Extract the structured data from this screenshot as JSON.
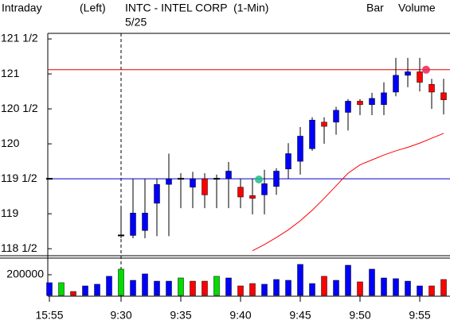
{
  "chart_data": {
    "type": "candlestick",
    "header": {
      "mode": "Intraday",
      "scale": "(Left)",
      "title": "INTC - INTEL CORP  (1-Min)",
      "date": "5/25",
      "style": "Bar",
      "study": "Volume",
      "study_color": "#00cc00"
    },
    "categories": [
      "15:55",
      null,
      null,
      null,
      null,
      null,
      "9:30",
      null,
      null,
      null,
      null,
      "9:35",
      null,
      null,
      null,
      null,
      "9:40",
      null,
      null,
      null,
      null,
      "9:45",
      null,
      null,
      null,
      null,
      "9:50",
      null,
      null,
      null,
      null,
      "9:55",
      null,
      null
    ],
    "open": [
      119.5,
      null,
      null,
      null,
      null,
      null,
      118.69,
      118.69,
      118.76,
      119.15,
      119.42,
      119.5,
      119.38,
      119.5,
      119.5,
      119.5,
      119.38,
      119.26,
      119.27,
      119.39,
      119.64,
      119.75,
      119.93,
      120.31,
      120.31,
      120.45,
      120.61,
      120.56,
      120.56,
      120.74,
      120.98,
      121.03,
      120.85,
      120.73
    ],
    "high": [
      119.5,
      null,
      null,
      null,
      null,
      null,
      119.08,
      119.5,
      119.5,
      119.5,
      119.86,
      119.58,
      119.6,
      119.58,
      119.56,
      119.74,
      119.5,
      119.5,
      119.63,
      119.65,
      120.01,
      120.24,
      120.38,
      120.38,
      120.53,
      120.64,
      120.64,
      120.73,
      120.88,
      121.23,
      121.23,
      121.23,
      120.93,
      120.93
    ],
    "low": [
      119.5,
      null,
      null,
      null,
      null,
      null,
      118.65,
      118.65,
      118.65,
      118.68,
      118.68,
      119.08,
      119.08,
      119.08,
      119.08,
      119.08,
      119.08,
      118.99,
      118.99,
      119.27,
      119.5,
      119.56,
      119.9,
      120.0,
      120.13,
      120.19,
      120.41,
      120.41,
      120.41,
      120.68,
      120.81,
      120.75,
      120.5,
      120.42
    ],
    "close": [
      119.5,
      null,
      null,
      null,
      null,
      null,
      118.69,
      119.01,
      119.01,
      119.42,
      119.5,
      119.5,
      119.5,
      119.27,
      119.5,
      119.61,
      119.24,
      119.22,
      119.43,
      119.61,
      119.86,
      120.11,
      120.34,
      120.25,
      120.48,
      120.61,
      120.56,
      120.65,
      120.73,
      120.98,
      121.03,
      120.88,
      120.74,
      120.63
    ],
    "up_color": "#0000ff",
    "down_color": "#ff0000",
    "flat_color": "#000000",
    "moving_average": {
      "color": "#ff0000",
      "values": [
        null,
        null,
        null,
        null,
        null,
        null,
        null,
        null,
        null,
        null,
        null,
        null,
        null,
        null,
        null,
        null,
        null,
        118.47,
        118.56,
        118.66,
        118.77,
        118.9,
        119.05,
        119.22,
        119.4,
        119.58,
        119.7,
        119.77,
        119.84,
        119.9,
        119.95,
        120.01,
        120.08,
        120.15
      ]
    },
    "hlines": [
      {
        "value": 121.06,
        "color": "#dd0000"
      },
      {
        "value": 119.5,
        "color": "#0000cc"
      }
    ],
    "markers": [
      {
        "x": 17,
        "value": 119.49,
        "color": "#22bb88"
      },
      {
        "x": 31,
        "value": 121.06,
        "color": "#ee2255"
      }
    ],
    "ylim": [
      118.4,
      121.58
    ],
    "yticks": [
      {
        "value": 121.5,
        "label": "121 1/2"
      },
      121,
      {
        "value": 120.5,
        "label": "120 1/2"
      },
      120,
      {
        "value": 119.5,
        "label": "119 1/2"
      },
      119,
      {
        "value": 118.5,
        "label": "118 1/2"
      }
    ],
    "volume": {
      "values": [
        123000,
        123000,
        38000,
        92000,
        108000,
        185000,
        254000,
        146000,
        208000,
        138000,
        138000,
        169000,
        138000,
        138000,
        185000,
        169000,
        92000,
        115000,
        108000,
        154000,
        146000,
        300000,
        115000,
        185000,
        146000,
        292000,
        131000,
        254000,
        169000,
        162000,
        138000,
        92000,
        92000,
        154000
      ],
      "colors": [
        "#0000ff",
        "#00dd00",
        "#ff0000",
        "#0000ff",
        "#0000ff",
        "#0000ff",
        "#00dd00",
        "#0000ff",
        "#0000ff",
        "#0000ff",
        "#0000ff",
        "#00dd00",
        "#ff0000",
        "#ff0000",
        "#00dd00",
        "#0000ff",
        "#ff0000",
        "#ff0000",
        "#0000ff",
        "#0000ff",
        "#0000ff",
        "#0000ff",
        "#0000ff",
        "#ff0000",
        "#0000ff",
        "#0000ff",
        "#ff0000",
        "#0000ff",
        "#0000ff",
        "#0000ff",
        "#0000ff",
        "#0000ff",
        "#ff0000",
        "#ff0000"
      ],
      "ylim": [
        0,
        338000
      ],
      "yticks": [
        200000
      ]
    }
  }
}
